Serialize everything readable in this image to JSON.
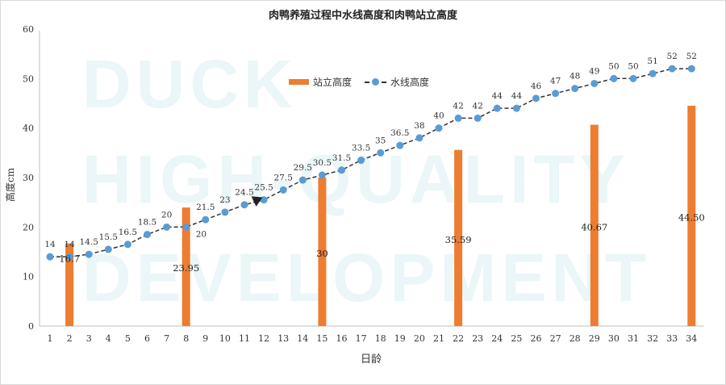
{
  "watermark": {
    "line1": "DUCK",
    "line2": "HIGH-QUALITY",
    "line3": "DEVELOPMENT",
    "color": "#eaf6f7"
  },
  "chart_data": {
    "type": "bar+line",
    "title": "肉鸭养殖过程中水线高度和肉鸭站立高度",
    "xlabel": "日龄",
    "ylabel": "高度cm",
    "ylim": [
      0,
      60
    ],
    "yticks": [
      0,
      10,
      20,
      30,
      40,
      50,
      60
    ],
    "legend_position": "top-center",
    "x": [
      1,
      2,
      3,
      4,
      5,
      6,
      7,
      8,
      9,
      10,
      11,
      12,
      13,
      14,
      15,
      16,
      17,
      18,
      19,
      20,
      21,
      22,
      23,
      24,
      25,
      26,
      27,
      28,
      29,
      30,
      31,
      32,
      33,
      34
    ],
    "line_series": {
      "name": "水线高度",
      "color": "#5b9bd5",
      "values": [
        14,
        14,
        14.5,
        15.5,
        16.5,
        18.5,
        20,
        20,
        21.5,
        23,
        24.5,
        25.5,
        27.5,
        29.5,
        30.5,
        31.5,
        33.5,
        35,
        36.5,
        38,
        40,
        42,
        42,
        44,
        44,
        46,
        47,
        48,
        49,
        50,
        50,
        51,
        52,
        52
      ]
    },
    "bar_series": {
      "name": "站立高度",
      "color": "#ed7d31",
      "x": [
        2,
        8,
        15,
        22,
        29,
        34
      ],
      "values": [
        16.7,
        23.95,
        30,
        35.59,
        40.67,
        44.5
      ],
      "labels": [
        "16.7",
        "23.95",
        "30",
        "35.59",
        "40.67",
        "44.50"
      ]
    }
  }
}
